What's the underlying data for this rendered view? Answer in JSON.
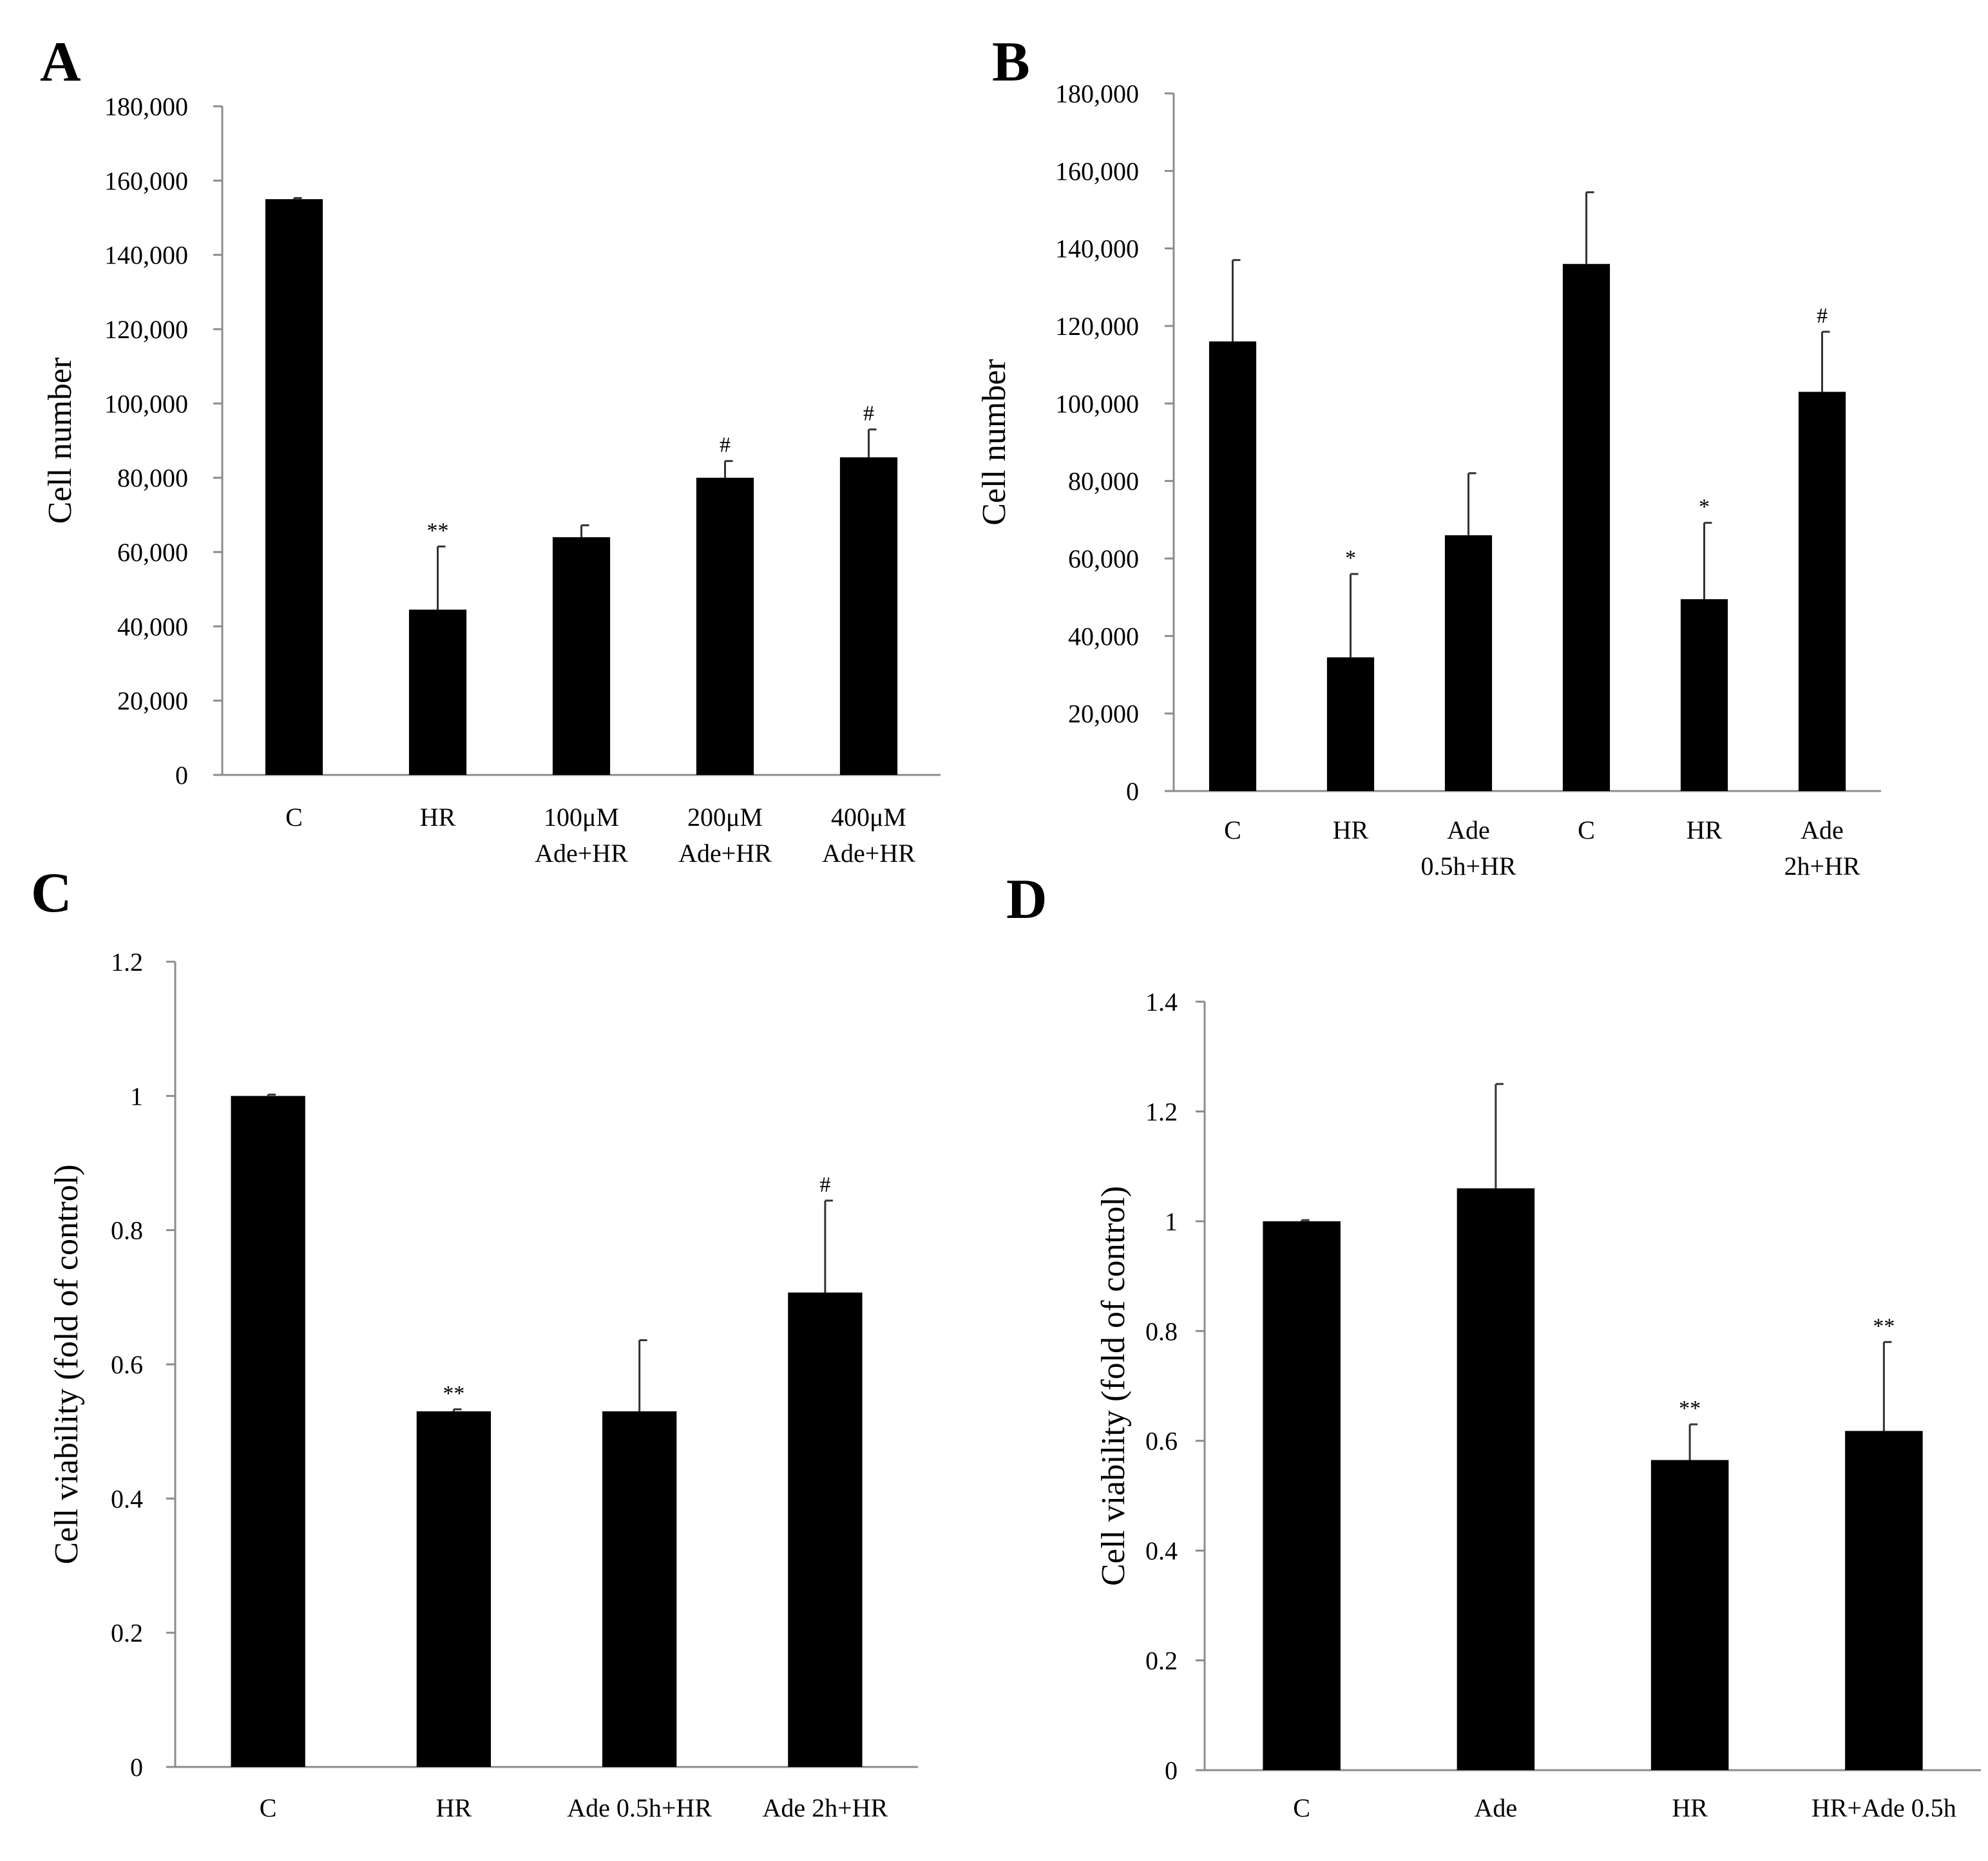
{
  "figure": {
    "panels_order": [
      "A",
      "B",
      "C",
      "D"
    ]
  },
  "chart_data": [
    {
      "panel": "A",
      "type": "bar",
      "ylabel": "Cell number",
      "ylim": [
        0,
        180000
      ],
      "ticks": [
        "0",
        "20,000",
        "40,000",
        "60,000",
        "80,000",
        "100,000",
        "120,000",
        "140,000",
        "160,000",
        "180,000"
      ],
      "categories": [
        [
          "C"
        ],
        [
          "HR"
        ],
        [
          "100μM",
          "Ade+HR"
        ],
        [
          "200μM",
          "Ade+HR"
        ],
        [
          "400μM",
          "Ade+HR"
        ]
      ],
      "values": [
        155000,
        44500,
        64000,
        80000,
        85500
      ],
      "errors": [
        300,
        17000,
        3200,
        4500,
        7500
      ],
      "annotations": [
        "",
        "**",
        "",
        "#",
        "#"
      ],
      "color": "#000000"
    },
    {
      "panel": "B",
      "type": "bar",
      "ylabel": "Cell number",
      "ylim": [
        0,
        180000
      ],
      "ticks": [
        "0",
        "20,000",
        "40,000",
        "60,000",
        "80,000",
        "100,000",
        "120,000",
        "140,000",
        "160,000",
        "180,000"
      ],
      "categories": [
        [
          "C"
        ],
        [
          "HR"
        ],
        [
          "Ade",
          "0.5h+HR"
        ],
        [
          "C"
        ],
        [
          "HR"
        ],
        [
          "Ade",
          "2h+HR"
        ]
      ],
      "values": [
        116000,
        34500,
        66000,
        136000,
        49500,
        103000
      ],
      "errors": [
        21000,
        21500,
        16000,
        18500,
        19700,
        15500
      ],
      "annotations": [
        "",
        "*",
        "",
        "",
        "*",
        "#"
      ],
      "color": "#000000"
    },
    {
      "panel": "C",
      "type": "bar",
      "ylabel": "Cell viability (fold of control)",
      "ylim": [
        0,
        1.2
      ],
      "ticks": [
        "0",
        "0.2",
        "0.4",
        "0.6",
        "0.8",
        "1",
        "1.2"
      ],
      "categories": [
        [
          "C"
        ],
        [
          "HR"
        ],
        [
          "Ade 0.5h+HR"
        ],
        [
          "Ade 2h+HR"
        ]
      ],
      "values": [
        1.0,
        0.53,
        0.53,
        0.707
      ],
      "errors": [
        0.002,
        0.003,
        0.106,
        0.137
      ],
      "annotations": [
        "",
        "**",
        "",
        "#"
      ],
      "color": "#000000"
    },
    {
      "panel": "D",
      "type": "bar",
      "ylabel": "Cell viability (fold of control)",
      "ylim": [
        0,
        1.4
      ],
      "ticks": [
        "0",
        "0.2",
        "0.4",
        "0.6",
        "0.8",
        "1",
        "1.2",
        "1.4"
      ],
      "categories": [
        [
          "C"
        ],
        [
          "Ade"
        ],
        [
          "HR"
        ],
        [
          "HR+Ade 0.5h"
        ]
      ],
      "values": [
        1.0,
        1.06,
        0.565,
        0.618
      ],
      "errors": [
        0.002,
        0.19,
        0.065,
        0.162
      ],
      "annotations": [
        "",
        "",
        "**",
        "**"
      ],
      "color": "#000000"
    }
  ]
}
